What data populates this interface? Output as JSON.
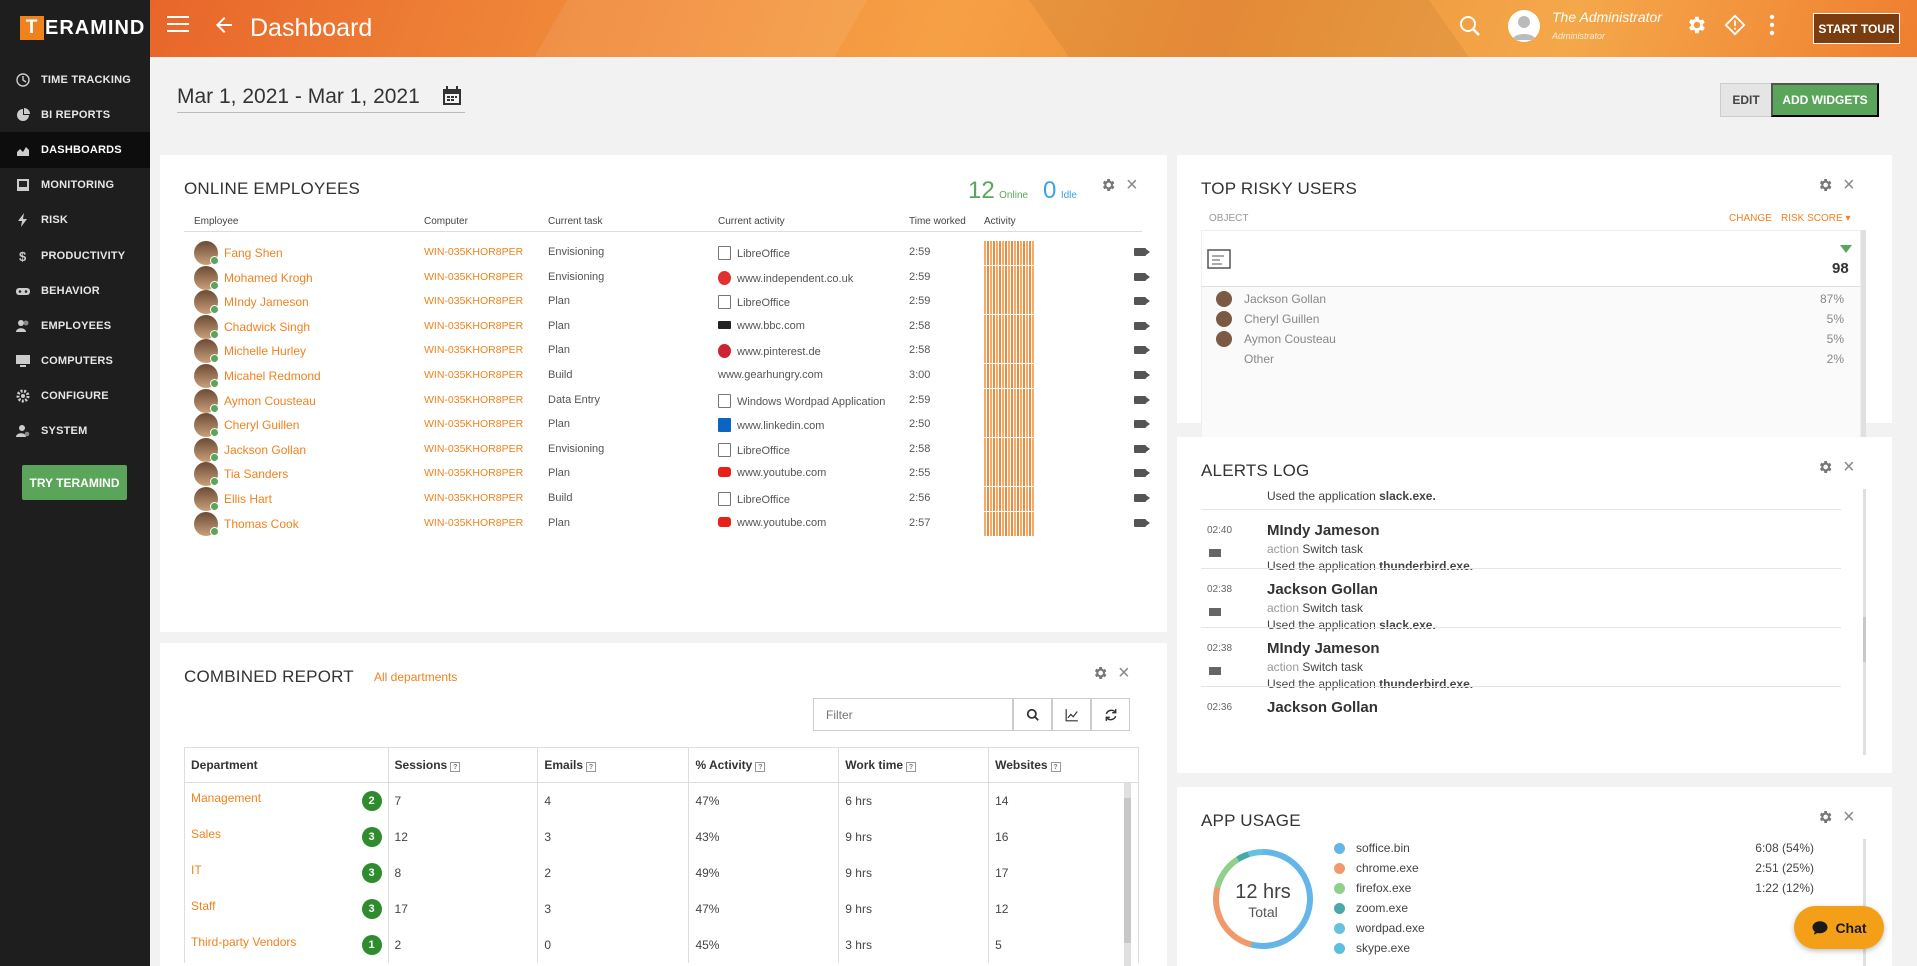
{
  "sidebar": {
    "logo_initial": "T",
    "logo_rest": "ERAMIND",
    "items": [
      {
        "label": "TIME TRACKING",
        "icon": "clock-icon"
      },
      {
        "label": "BI REPORTS",
        "icon": "pie-chart-icon"
      },
      {
        "label": "DASHBOARDS",
        "icon": "dashboard-icon"
      },
      {
        "label": "MONITORING",
        "icon": "monitor-icon"
      },
      {
        "label": "RISK",
        "icon": "bolt-icon"
      },
      {
        "label": "PRODUCTIVITY",
        "icon": "dollar-icon"
      },
      {
        "label": "BEHAVIOR",
        "icon": "gamepad-icon"
      },
      {
        "label": "EMPLOYEES",
        "icon": "users-icon"
      },
      {
        "label": "COMPUTERS",
        "icon": "computer-icon"
      },
      {
        "label": "CONFIGURE",
        "icon": "gear-icon"
      },
      {
        "label": "SYSTEM",
        "icon": "person-gear-icon"
      }
    ],
    "try_label": "TRY TERAMIND"
  },
  "topbar": {
    "title": "Dashboard",
    "user_name": "The Administrator",
    "user_role": "Administrator",
    "tour_label": "START TOUR"
  },
  "toolbar": {
    "date_range": "Mar 1, 2021 - Mar 1, 2021",
    "edit_label": "EDIT",
    "add_label": "ADD WIDGETS"
  },
  "online": {
    "title": "ONLINE EMPLOYEES",
    "online_count": "12",
    "online_label": "Online",
    "idle_count": "0",
    "idle_label": "Idle",
    "headers": [
      "Employee",
      "Computer",
      "Current task",
      "Current activity",
      "Time worked",
      "Activity"
    ],
    "rows": [
      {
        "name": "Fang Shen",
        "computer": "WIN-035KHOR8PER",
        "task": "Envisioning",
        "activity": "LibreOffice",
        "icon": "doc",
        "time": "2:59"
      },
      {
        "name": "Mohamed Krogh",
        "computer": "WIN-035KHOR8PER",
        "task": "Envisioning",
        "activity": "www.independent.co.uk",
        "icon": "red",
        "time": "2:59"
      },
      {
        "name": "MIndy Jameson",
        "computer": "WIN-035KHOR8PER",
        "task": "Plan",
        "activity": "LibreOffice",
        "icon": "doc",
        "time": "2:59"
      },
      {
        "name": "Chadwick Singh",
        "computer": "WIN-035KHOR8PER",
        "task": "Plan",
        "activity": "www.bbc.com",
        "icon": "bbc",
        "time": "2:58"
      },
      {
        "name": "Michelle Hurley",
        "computer": "WIN-035KHOR8PER",
        "task": "Plan",
        "activity": "www.pinterest.de",
        "icon": "pin",
        "time": "2:58"
      },
      {
        "name": "Micahel Redmond",
        "computer": "WIN-035KHOR8PER",
        "task": "Build",
        "activity": "www.gearhungry.com",
        "icon": "none",
        "time": "3:00"
      },
      {
        "name": "Aymon Cousteau",
        "computer": "WIN-035KHOR8PER",
        "task": "Data Entry",
        "activity": "Windows Wordpad Application",
        "icon": "doc",
        "time": "2:59"
      },
      {
        "name": "Cheryl Guillen",
        "computer": "WIN-035KHOR8PER",
        "task": "Plan",
        "activity": "www.linkedin.com",
        "icon": "li",
        "time": "2:50"
      },
      {
        "name": "Jackson Gollan",
        "computer": "WIN-035KHOR8PER",
        "task": "Envisioning",
        "activity": "LibreOffice",
        "icon": "doc",
        "time": "2:58"
      },
      {
        "name": "Tia Sanders",
        "computer": "WIN-035KHOR8PER",
        "task": "Plan",
        "activity": "www.youtube.com",
        "icon": "yt",
        "time": "2:55"
      },
      {
        "name": "Ellis Hart",
        "computer": "WIN-035KHOR8PER",
        "task": "Build",
        "activity": "LibreOffice",
        "icon": "doc",
        "time": "2:56"
      },
      {
        "name": "Thomas Cook",
        "computer": "WIN-035KHOR8PER",
        "task": "Plan",
        "activity": "www.youtube.com",
        "icon": "yt",
        "time": "2:57"
      }
    ]
  },
  "combined": {
    "title": "COMBINED REPORT",
    "dept_link": "All departments",
    "filter_placeholder": "Filter",
    "headers": [
      "Department",
      "Sessions",
      "Emails",
      "% Activity",
      "Work time",
      "Websites"
    ],
    "rows": [
      {
        "dept": "Management",
        "badge": "2",
        "sessions": "7",
        "emails": "4",
        "activity": "47%",
        "work": "6 hrs",
        "websites": "14"
      },
      {
        "dept": "Sales",
        "badge": "3",
        "sessions": "12",
        "emails": "3",
        "activity": "43%",
        "work": "9 hrs",
        "websites": "16"
      },
      {
        "dept": "IT",
        "badge": "3",
        "sessions": "8",
        "emails": "2",
        "activity": "49%",
        "work": "9 hrs",
        "websites": "17"
      },
      {
        "dept": "Staff",
        "badge": "3",
        "sessions": "17",
        "emails": "3",
        "activity": "47%",
        "work": "9 hrs",
        "websites": "12"
      },
      {
        "dept": "Third-party Vendors",
        "badge": "1",
        "sessions": "2",
        "emails": "0",
        "activity": "45%",
        "work": "3 hrs",
        "websites": "5"
      }
    ]
  },
  "risky": {
    "title": "TOP RISKY USERS",
    "col_object": "OBJECT",
    "col_change": "CHANGE",
    "col_score": "RISK SCORE",
    "score": "98",
    "items": [
      {
        "name": "Jackson Gollan",
        "pct": "87%"
      },
      {
        "name": "Cheryl Guillen",
        "pct": "5%"
      },
      {
        "name": "Aymon Cousteau",
        "pct": "5%"
      },
      {
        "name": "Other",
        "pct": "2%"
      }
    ]
  },
  "alerts": {
    "title": "ALERTS LOG",
    "first_line_prefix": "Used the application ",
    "first_line_app": "slack.exe.",
    "entries": [
      {
        "time": "02:40",
        "name": "MIndy Jameson",
        "action_label": "action",
        "action": "Switch task",
        "usage_prefix": "Used the application ",
        "app": "thunderbird.exe."
      },
      {
        "time": "02:38",
        "name": "Jackson Gollan",
        "action_label": "action",
        "action": "Switch task",
        "usage_prefix": "Used the application ",
        "app": "slack.exe."
      },
      {
        "time": "02:38",
        "name": "MIndy Jameson",
        "action_label": "action",
        "action": "Switch task",
        "usage_prefix": "Used the application ",
        "app": "thunderbird.exe."
      },
      {
        "time": "02:36",
        "name": "Jackson Gollan"
      }
    ]
  },
  "apps": {
    "title": "APP USAGE",
    "total_value": "12 hrs",
    "total_label": "Total",
    "items": [
      {
        "name": "soffice.bin",
        "value": "6:08 (54%)",
        "color": "#64b5e8"
      },
      {
        "name": "chrome.exe",
        "value": "2:51 (25%)",
        "color": "#f09a6c"
      },
      {
        "name": "firefox.exe",
        "value": "1:22 (12%)",
        "color": "#8fd08a"
      },
      {
        "name": "zoom.exe",
        "value": "",
        "color": "#4aa8a8"
      },
      {
        "name": "wordpad.exe",
        "value": "",
        "color": "#66c2e0"
      },
      {
        "name": "skype.exe",
        "value": "",
        "color": "#5bc0de"
      }
    ]
  },
  "chat": {
    "label": "Chat"
  }
}
